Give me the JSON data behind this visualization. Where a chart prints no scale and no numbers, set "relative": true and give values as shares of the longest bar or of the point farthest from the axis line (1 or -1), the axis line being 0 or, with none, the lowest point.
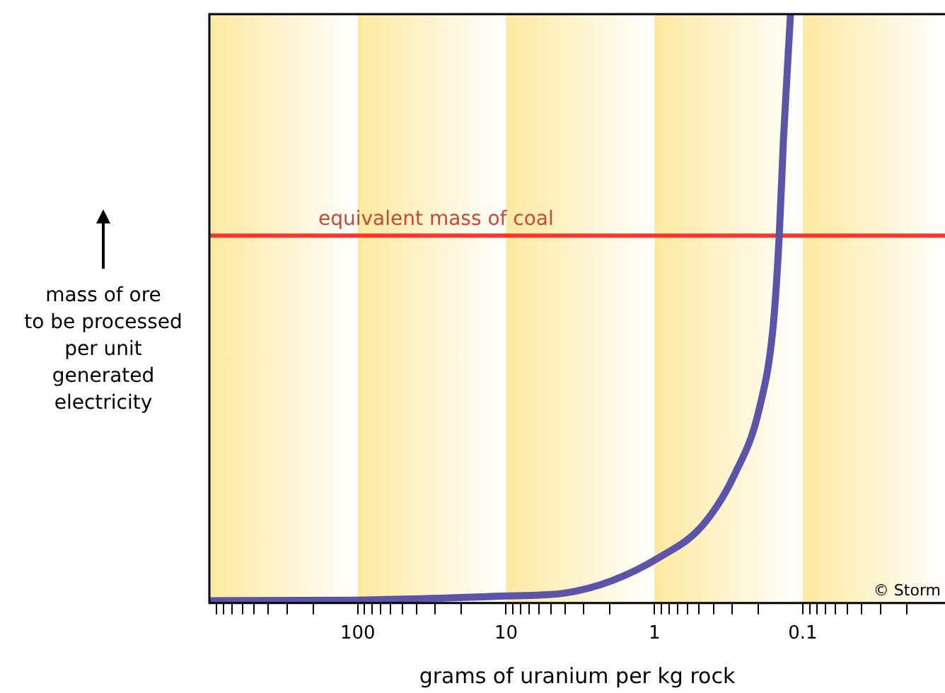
{
  "chart_data": {
    "type": "line",
    "xlabel": "grams of uranium per kg rock",
    "ylabel": "mass of ore\nto be processed\nper unit\ngenerated\nelectricity",
    "relative": true,
    "log": "x",
    "xlim": [
      1000,
      0.011
    ],
    "xticks": [
      {
        "value": 900,
        "label": null
      },
      {
        "value": 800,
        "label": null
      },
      {
        "value": 700,
        "label": null
      },
      {
        "value": 600,
        "label": null
      },
      {
        "value": 500,
        "label": null
      },
      {
        "value": 400,
        "label": null
      },
      {
        "value": 300,
        "label": null
      },
      {
        "value": 200,
        "label": null
      },
      100,
      {
        "value": 90,
        "label": null
      },
      {
        "value": 80,
        "label": null
      },
      {
        "value": 70,
        "label": null
      },
      {
        "value": 60,
        "label": null
      },
      {
        "value": 50,
        "label": null
      },
      {
        "value": 40,
        "label": null
      },
      {
        "value": 30,
        "label": null
      },
      {
        "value": 20,
        "label": null
      },
      10,
      {
        "value": 9,
        "label": null
      },
      {
        "value": 8,
        "label": null
      },
      {
        "value": 7,
        "label": null
      },
      {
        "value": 6,
        "label": null
      },
      {
        "value": 5,
        "label": null
      },
      {
        "value": 4,
        "label": null
      },
      {
        "value": 3,
        "label": null
      },
      {
        "value": 2,
        "label": null
      },
      1,
      {
        "value": 0.9,
        "label": null
      },
      {
        "value": 0.8,
        "label": null
      },
      {
        "value": 0.7,
        "label": null
      },
      {
        "value": 0.6,
        "label": null
      },
      {
        "value": 0.5,
        "label": null
      },
      {
        "value": 0.4,
        "label": null
      },
      {
        "value": 0.3,
        "label": null
      },
      {
        "value": 0.2,
        "label": null
      },
      0.1,
      {
        "value": 0.09,
        "label": null
      },
      {
        "value": 0.08,
        "label": null
      },
      {
        "value": 0.07,
        "label": null
      },
      {
        "value": 0.06,
        "label": null
      },
      {
        "value": 0.05,
        "label": null
      },
      {
        "value": 0.04,
        "label": null
      },
      {
        "value": 0.03,
        "label": null
      },
      {
        "value": 0.02,
        "label": null
      }
    ],
    "series": [
      {
        "color": "#5a55a8",
        "x": [
          1000,
          100,
          10,
          4,
          1.93,
          0.92,
          0.473,
          0.286,
          0.196,
          0.158,
          0.144,
          0.135,
          0.121
        ],
        "values": [
          0.004,
          0.005,
          0.012,
          0.017,
          0.038,
          0.078,
          0.132,
          0.22,
          0.331,
          0.473,
          0.626,
          0.787,
          1
        ]
      }
    ],
    "ref_lines": [
      {
        "axis": "y",
        "value": 0.624,
        "label": "equivalent mass of coal",
        "color": "#f03a2e"
      }
    ],
    "bands": [
      {
        "axis": "x",
        "from": 1000,
        "to": 100,
        "color": "#fde9a0"
      },
      {
        "axis": "x",
        "from": 100,
        "to": 10,
        "color": "#fde9a0"
      },
      {
        "axis": "x",
        "from": 10,
        "to": 1,
        "color": "#fde9a0"
      },
      {
        "axis": "x",
        "from": 1,
        "to": 0.1,
        "color": "#fde9a0"
      },
      {
        "axis": "x",
        "from": 0.1,
        "to": 0.011,
        "color": "#fde9a0"
      }
    ],
    "annotations": [
      "© Storm"
    ],
    "legend": false,
    "grid": false,
    "marker": "none",
    "line_style": "solid"
  }
}
